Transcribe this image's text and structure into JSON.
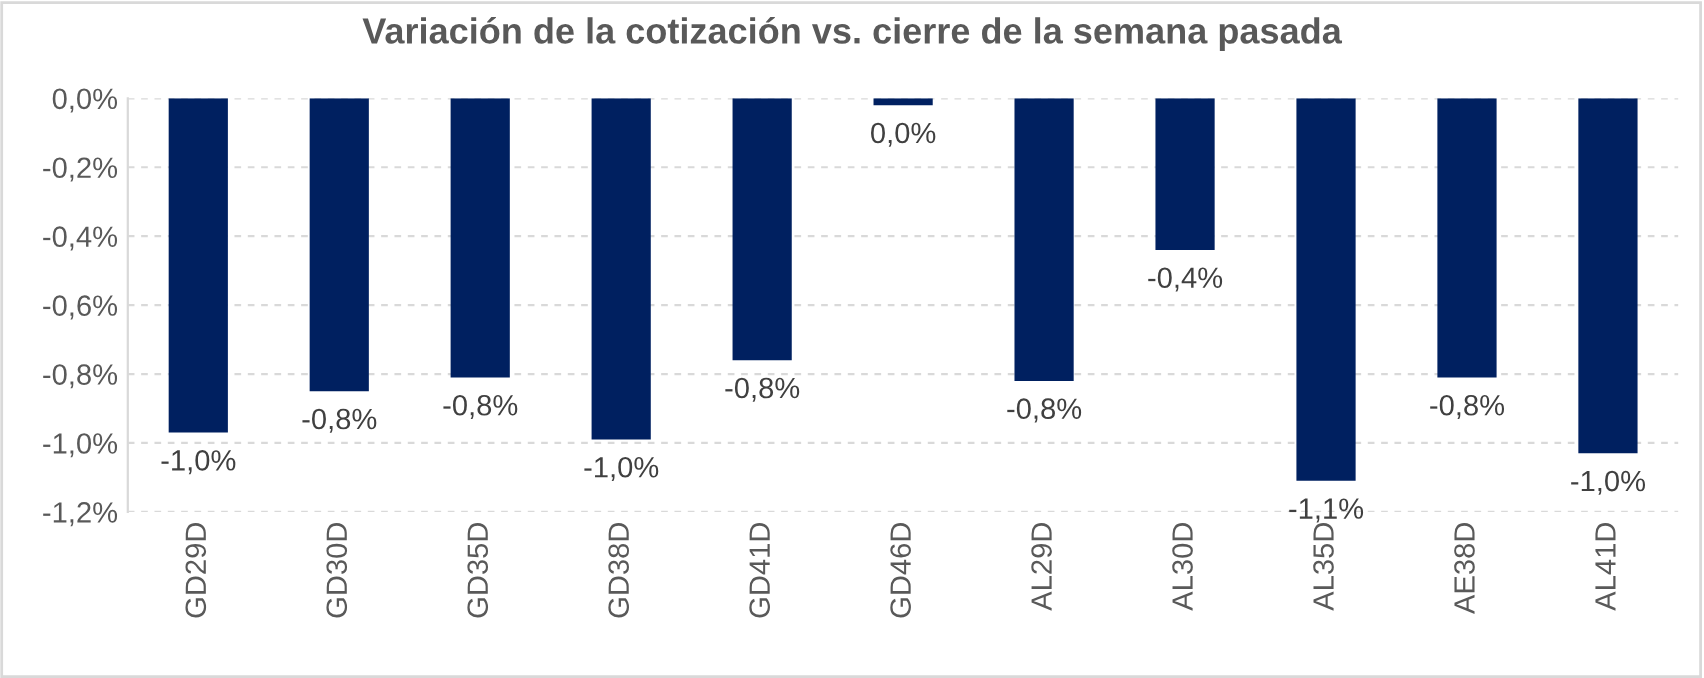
{
  "chart_data": {
    "type": "bar",
    "title": "Variación de la cotización vs. cierre de la semana pasada",
    "categories": [
      "GD29D",
      "GD30D",
      "GD35D",
      "GD38D",
      "GD41D",
      "GD46D",
      "AL29D",
      "AL30D",
      "AL35D",
      "AE38D",
      "AL41D"
    ],
    "values": [
      -0.97,
      -0.85,
      -0.81,
      -0.99,
      -0.76,
      -0.02,
      -0.82,
      -0.44,
      -1.11,
      -0.81,
      -1.03
    ],
    "value_labels": [
      "-1,0%",
      "-0,8%",
      "-0,8%",
      "-1,0%",
      "-0,8%",
      "0,0%",
      "-0,8%",
      "-0,4%",
      "-1,1%",
      "-0,8%",
      "-1,0%"
    ],
    "color": "#002060",
    "ylim": [
      -1.2,
      0
    ],
    "yticks": [
      {
        "value": -1.2,
        "label": "-1,2%"
      },
      {
        "value": -1.0,
        "label": "-1,0%"
      },
      {
        "value": -0.8,
        "label": "-0,8%"
      },
      {
        "value": -0.6,
        "label": "-0,6%"
      },
      {
        "value": -0.4,
        "label": "-0,4%"
      },
      {
        "value": -0.2,
        "label": "-0,2%"
      },
      {
        "value": 0,
        "label": "0,0%"
      }
    ],
    "grid": "y",
    "legend": false
  }
}
